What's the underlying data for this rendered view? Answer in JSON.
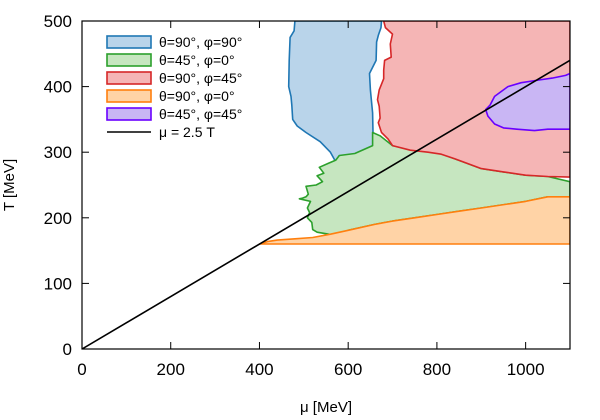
{
  "chart_data": {
    "type": "area",
    "xlabel": "μ [MeV]",
    "ylabel": "T [MeV]",
    "xlim": [
      0,
      1100
    ],
    "ylim": [
      0,
      500
    ],
    "xticks": [
      0,
      200,
      400,
      600,
      800,
      1000
    ],
    "yticks": [
      0,
      100,
      200,
      300,
      400,
      500
    ],
    "grid": false,
    "legend_position": "top-left",
    "series": [
      {
        "name": "θ=90°, φ=90°",
        "fill": "#b9d4ea",
        "stroke": "#1f77b4",
        "polygon": [
          [
            480,
            500
          ],
          [
            478,
            485
          ],
          [
            469,
            475
          ],
          [
            467,
            440
          ],
          [
            466,
            400
          ],
          [
            471,
            385
          ],
          [
            473,
            372
          ],
          [
            475,
            350
          ],
          [
            485,
            340
          ],
          [
            505,
            330
          ],
          [
            537,
            316
          ],
          [
            560,
            300
          ],
          [
            572,
            285
          ],
          [
            595,
            283
          ],
          [
            625,
            290
          ],
          [
            655,
            300
          ],
          [
            658,
            320
          ],
          [
            656,
            330
          ],
          [
            655,
            360
          ],
          [
            650,
            395
          ],
          [
            648,
            420
          ],
          [
            663,
            440
          ],
          [
            664,
            468
          ],
          [
            668,
            478
          ],
          [
            674,
            490
          ],
          [
            675,
            500
          ]
        ]
      },
      {
        "name": "θ=45°, φ=0°",
        "fill": "#c6e6c0",
        "stroke": "#2ca02c",
        "polygon": [
          [
            655,
            330
          ],
          [
            655,
            310
          ],
          [
            615,
            298
          ],
          [
            580,
            295
          ],
          [
            572,
            288
          ],
          [
            555,
            283
          ],
          [
            535,
            277
          ],
          [
            545,
            268
          ],
          [
            530,
            264
          ],
          [
            542,
            255
          ],
          [
            528,
            250
          ],
          [
            505,
            248
          ],
          [
            510,
            236
          ],
          [
            505,
            232
          ],
          [
            497,
            230
          ],
          [
            490,
            229
          ],
          [
            515,
            225
          ],
          [
            508,
            215
          ],
          [
            513,
            208
          ],
          [
            508,
            200
          ],
          [
            518,
            193
          ],
          [
            520,
            182
          ],
          [
            530,
            178
          ],
          [
            556,
            175
          ],
          [
            573,
            172
          ],
          [
            600,
            181
          ],
          [
            660,
            190
          ],
          [
            700,
            195
          ],
          [
            750,
            200
          ],
          [
            800,
            205
          ],
          [
            850,
            210
          ],
          [
            900,
            215
          ],
          [
            1000,
            225
          ],
          [
            1050,
            232
          ],
          [
            1100,
            232
          ],
          [
            1100,
            255
          ],
          [
            1050,
            263
          ],
          [
            1000,
            265
          ],
          [
            950,
            270
          ],
          [
            900,
            275
          ],
          [
            860,
            285
          ],
          [
            820,
            295
          ],
          [
            800,
            302
          ],
          [
            735,
            305
          ],
          [
            700,
            310
          ],
          [
            672,
            325
          ]
        ]
      },
      {
        "name": "θ=90°, φ=45°",
        "fill": "#f5b5b5",
        "stroke": "#d62728",
        "polygon": [
          [
            680,
            500
          ],
          [
            684,
            490
          ],
          [
            700,
            480
          ],
          [
            695,
            465
          ],
          [
            697,
            445
          ],
          [
            682,
            440
          ],
          [
            680,
            425
          ],
          [
            680,
            412
          ],
          [
            670,
            395
          ],
          [
            666,
            380
          ],
          [
            670,
            370
          ],
          [
            672,
            352
          ],
          [
            668,
            345
          ],
          [
            675,
            330
          ],
          [
            690,
            320
          ],
          [
            700,
            310
          ],
          [
            740,
            303
          ],
          [
            780,
            300
          ],
          [
            810,
            297
          ],
          [
            840,
            290
          ],
          [
            860,
            285
          ],
          [
            900,
            275
          ],
          [
            950,
            270
          ],
          [
            1000,
            265
          ],
          [
            1050,
            263
          ],
          [
            1100,
            262
          ],
          [
            1100,
            500
          ]
        ]
      },
      {
        "name": "θ=90°, φ=0°",
        "fill": "#ffd3a6",
        "stroke": "#ff7f0e",
        "polygon": [
          [
            400,
            160
          ],
          [
            420,
            164
          ],
          [
            440,
            166
          ],
          [
            480,
            168
          ],
          [
            520,
            170
          ],
          [
            560,
            175
          ],
          [
            600,
            181
          ],
          [
            660,
            190
          ],
          [
            700,
            195
          ],
          [
            750,
            200
          ],
          [
            800,
            205
          ],
          [
            850,
            210
          ],
          [
            900,
            215
          ],
          [
            1000,
            225
          ],
          [
            1050,
            232
          ],
          [
            1100,
            232
          ],
          [
            1100,
            160
          ]
        ]
      },
      {
        "name": "θ=45°, φ=45°",
        "fill": "#c9b6f4",
        "stroke": "#6a00ff",
        "polygon": [
          [
            1100,
            420
          ],
          [
            1090,
            417
          ],
          [
            1060,
            413
          ],
          [
            1030,
            410
          ],
          [
            990,
            406
          ],
          [
            960,
            400
          ],
          [
            930,
            385
          ],
          [
            920,
            372
          ],
          [
            910,
            365
          ],
          [
            915,
            355
          ],
          [
            930,
            343
          ],
          [
            950,
            337
          ],
          [
            980,
            335
          ],
          [
            1020,
            333
          ],
          [
            1050,
            335
          ],
          [
            1100,
            335
          ]
        ]
      },
      {
        "name": "μ = 2.5 T",
        "stroke": "#000000",
        "line": [
          [
            0,
            0
          ],
          [
            1100,
            440
          ]
        ]
      }
    ]
  }
}
